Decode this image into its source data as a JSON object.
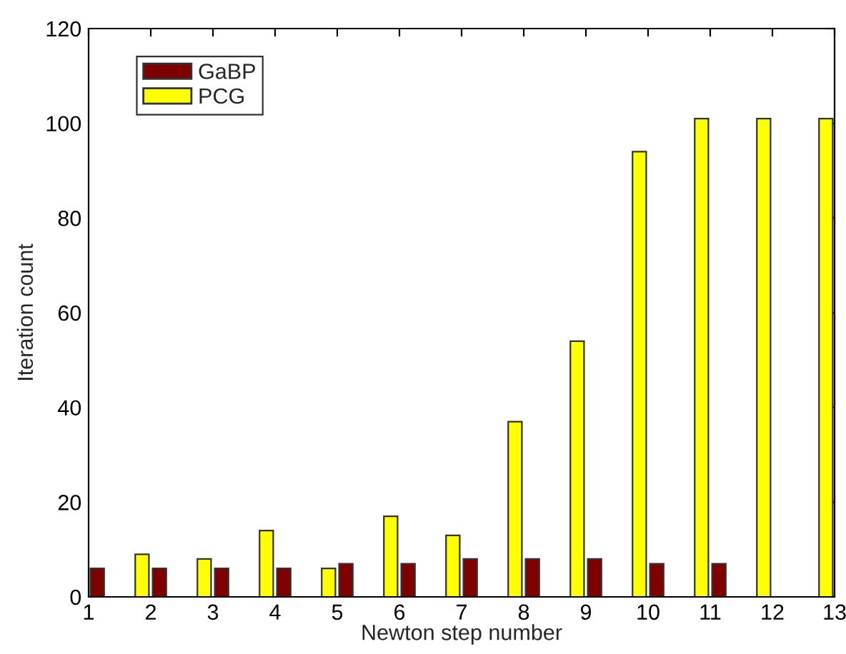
{
  "chart_data": {
    "type": "bar",
    "xlabel": "Newton step number",
    "ylabel": "Iteration count",
    "x": [
      1,
      2,
      3,
      4,
      5,
      6,
      7,
      8,
      9,
      10,
      11,
      12,
      13
    ],
    "series": [
      {
        "name": "GaBP",
        "color": "#800000",
        "values": [
          6,
          6,
          6,
          6,
          7,
          7,
          8,
          8,
          8,
          7,
          7,
          null,
          null
        ]
      },
      {
        "name": "PCG",
        "color": "#ffff00",
        "values": [
          null,
          9,
          8,
          14,
          6,
          17,
          13,
          37,
          54,
          94,
          101,
          101,
          101
        ]
      }
    ],
    "xlim": [
      1,
      13
    ],
    "xticks": [
      1,
      2,
      3,
      4,
      5,
      6,
      7,
      8,
      9,
      10,
      11,
      12,
      13
    ],
    "ylim": [
      0,
      120
    ],
    "yticks": [
      0,
      20,
      40,
      60,
      80,
      100,
      120
    ],
    "grid": false,
    "legend": "top left"
  }
}
